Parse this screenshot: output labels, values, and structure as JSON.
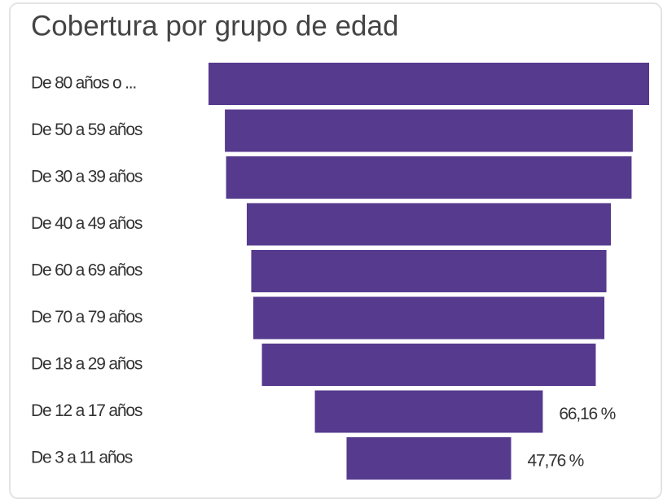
{
  "chart_data": {
    "type": "funnel",
    "title": "Cobertura por grupo de edad",
    "categories": [
      "De 80 años o ...",
      "De 50 a 59 años",
      "De 30 a 39 años",
      "De 40 a 49 años",
      "De 60 a 69 años",
      "De 70 a 79 años",
      "De 18 a 29 años",
      "De 12 a 17 años",
      "De 3 a 11 años"
    ],
    "values": [
      127.9,
      118.4,
      117.7,
      105.7,
      103.1,
      101.9,
      96.9,
      66.16,
      47.76
    ],
    "value_labels": [
      null,
      null,
      null,
      null,
      null,
      null,
      null,
      "66,16 %",
      "47,76 %"
    ],
    "color": "#553a8e"
  }
}
